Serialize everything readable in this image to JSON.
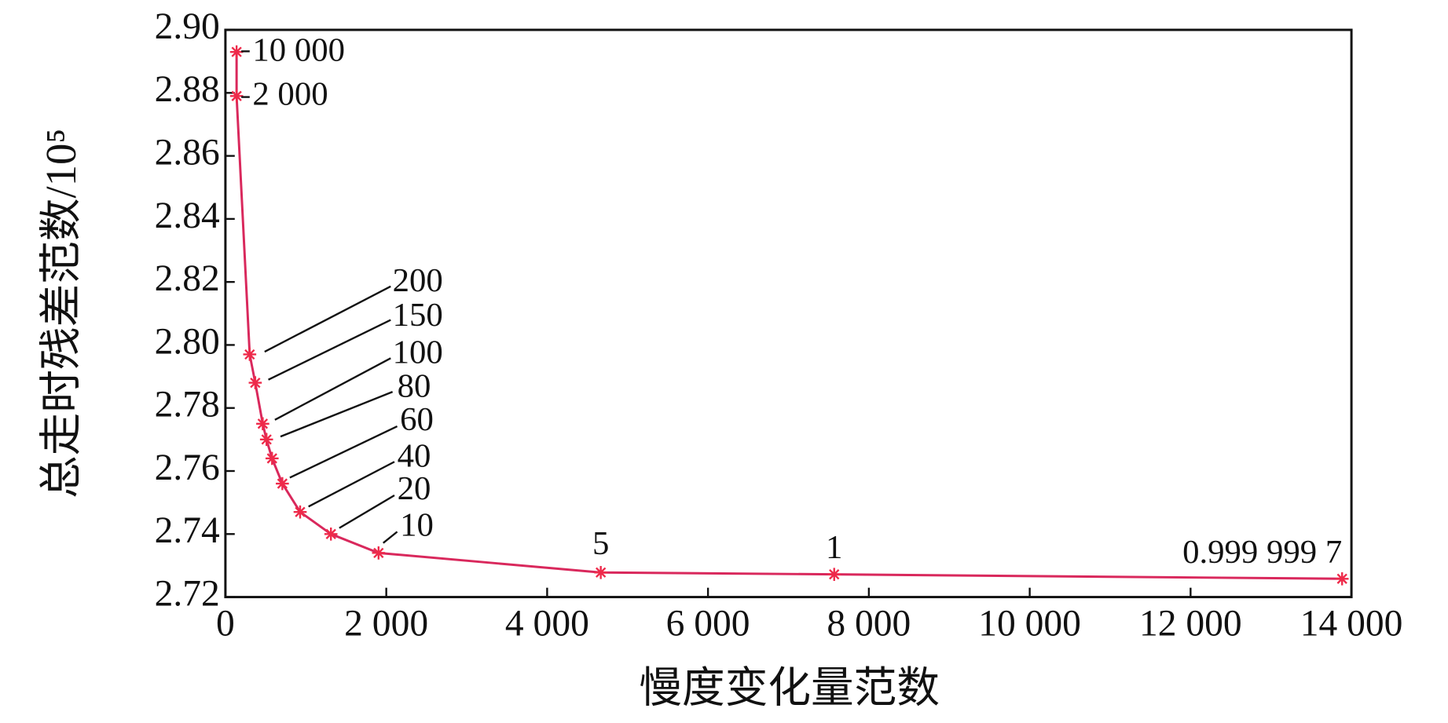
{
  "chart_data": {
    "type": "line",
    "x_label": "慢度变化量范数",
    "y_label": "总走时残差范数/10⁵",
    "xlim": [
      0,
      14000
    ],
    "xticks": [
      0,
      {
        "value": 2000,
        "label": "2 000"
      },
      {
        "value": 4000,
        "label": "4 000"
      },
      {
        "value": 6000,
        "label": "6 000"
      },
      {
        "value": 8000,
        "label": "8 000"
      },
      {
        "value": 10000,
        "label": "10 000"
      },
      {
        "value": 12000,
        "label": "12 000"
      },
      {
        "value": 14000,
        "label": "14 000"
      }
    ],
    "ylim": [
      2.72,
      2.9
    ],
    "yticks": [
      2.72,
      2.74,
      2.76,
      2.78,
      {
        "value": 2.8,
        "label": "2.80"
      },
      2.82,
      2.84,
      2.86,
      2.88,
      {
        "value": 2.9,
        "label": "2.90"
      }
    ],
    "series": [
      {
        "color": "#d9285c",
        "x": [
          139,
          139,
          302,
          371,
          464,
          511,
          580,
          708,
          929,
          1312,
          1904,
          4667,
          7569,
          13884
        ],
        "values": [
          2.893,
          2.879,
          2.797,
          2.788,
          2.775,
          2.77,
          2.764,
          2.756,
          2.747,
          2.74,
          2.734,
          2.7278,
          2.7272,
          2.7258
        ],
        "point_labels": [
          "10 000",
          "2 000",
          "200",
          "150",
          "100",
          "80",
          null,
          "60",
          "40",
          "20",
          "10",
          "5",
          "1",
          "0.999 999 7"
        ]
      }
    ]
  }
}
